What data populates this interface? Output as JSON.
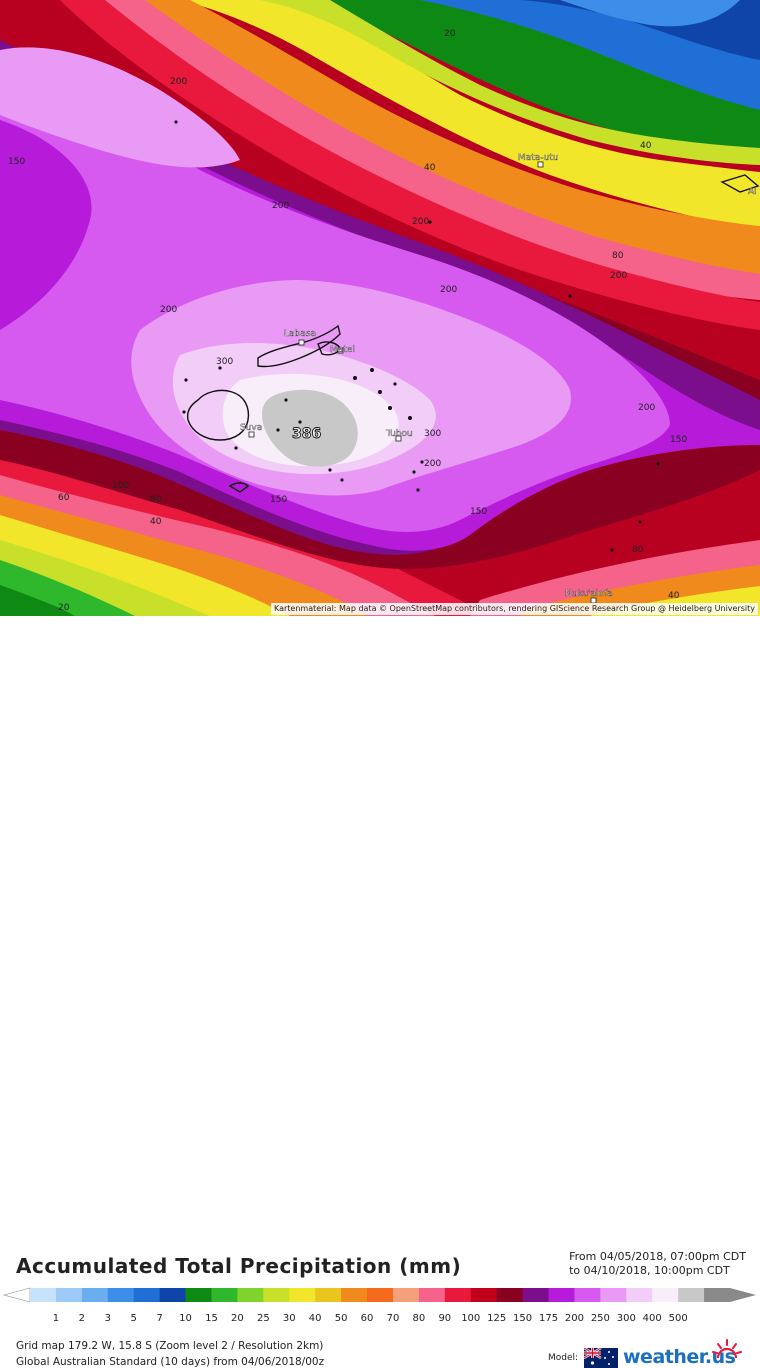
{
  "map": {
    "contour_labels": [
      "20",
      "40",
      "60",
      "80",
      "100",
      "150",
      "200",
      "300",
      "386"
    ],
    "places": [
      "Mata-utu",
      "Labasa",
      "Matei",
      "Suva",
      "Tubou",
      "Nuku'alofa",
      "Al"
    ],
    "max_value": "386",
    "attribution": "Kartenmaterial: Map data © OpenStreetMap contributors, rendering GIScience Research Group @ Heidelberg University"
  },
  "header": {
    "title": "Accumulated Total Precipitation (mm)",
    "period_from": "From 04/05/2018, 07:00pm CDT",
    "period_to": "to 04/10/2018, 10:00pm CDT"
  },
  "legend": {
    "ticks": [
      "1",
      "2",
      "3",
      "5",
      "7",
      "10",
      "15",
      "20",
      "25",
      "30",
      "40",
      "50",
      "60",
      "70",
      "80",
      "90",
      "100",
      "125",
      "150",
      "175",
      "200",
      "250",
      "300",
      "400",
      "500"
    ],
    "colors": [
      "#c7e3fb",
      "#9ccbf7",
      "#6aaef0",
      "#3d8ee8",
      "#1f6fd6",
      "#0f45a8",
      "#0e8a14",
      "#2fb82b",
      "#7fd32a",
      "#c8e02a",
      "#f2e62a",
      "#e9c51e",
      "#f08a1c",
      "#f56a1c",
      "#f5a07a",
      "#f5628a",
      "#e8193d",
      "#c0001a",
      "#8a0020",
      "#7a0e8c",
      "#b51bd8",
      "#d65af0",
      "#e99af5",
      "#f2cdf8",
      "#f8eefa",
      "#c8c8c8",
      "#8a8a8a"
    ]
  },
  "footer": {
    "grid": "Grid map 179.2 W, 15.8 S (Zoom level 2 / Resolution 2km)",
    "model": "Global Australian Standard (10 days) from 04/06/2018/00z",
    "model_label": "Model:",
    "brand": "weather.us"
  }
}
